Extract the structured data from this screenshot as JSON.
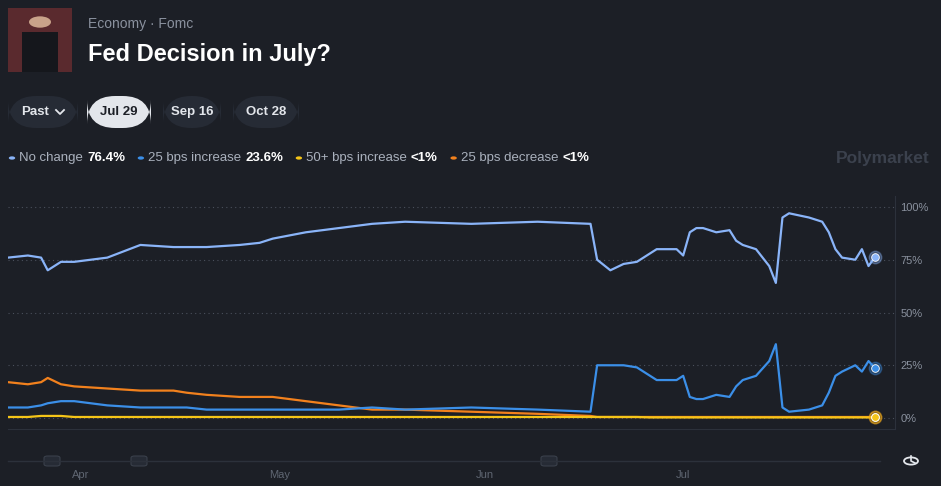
{
  "chart_data": {
    "type": "line",
    "subtitle": "Economy · Fomc",
    "title": "Fed Decision in July?",
    "tabs": [
      "Past",
      "Jul 29",
      "Sep 16",
      "Oct 28"
    ],
    "selected_tab": "Jul 29",
    "watermark": "Polymarket",
    "legend": "top",
    "grid": true,
    "x": [
      0,
      3,
      5,
      6,
      8,
      10,
      15,
      20,
      25,
      27,
      30,
      35,
      38,
      40,
      45,
      50,
      55,
      60,
      70,
      80,
      88,
      89,
      91,
      93,
      95,
      97,
      98,
      101,
      102,
      103,
      104,
      105,
      107,
      109,
      110,
      111,
      113,
      115,
      116,
      117,
      118,
      121,
      123,
      124,
      125,
      126,
      128,
      129,
      130,
      131
    ],
    "xlim": [
      0,
      134
    ],
    "xticks": [
      {
        "value": 11,
        "label": "Apr"
      },
      {
        "value": 41,
        "label": "May"
      },
      {
        "value": 72,
        "label": "Jun"
      },
      {
        "value": 102,
        "label": "Jul"
      }
    ],
    "ylim": [
      -5,
      105
    ],
    "yticks": [
      {
        "value": 0,
        "label": "0%"
      },
      {
        "value": 25,
        "label": "25%"
      },
      {
        "value": 50,
        "label": "50%"
      },
      {
        "value": 75,
        "label": "75%"
      },
      {
        "value": 100,
        "label": "100%"
      }
    ],
    "series": [
      {
        "name": "25 bps decrease",
        "label": "<1%",
        "color": "#f2811d",
        "values": [
          17,
          16,
          17,
          19,
          16,
          15,
          14,
          13,
          13,
          12,
          11,
          10,
          10,
          10,
          8,
          6,
          4,
          4,
          3,
          2,
          1,
          0.5,
          0.5,
          0.5,
          0.5,
          0.5,
          0.5,
          0.5,
          0.5,
          0.5,
          0.5,
          0.5,
          0.5,
          0.5,
          0.5,
          0.5,
          0.5,
          0.5,
          0.5,
          0.5,
          0.5,
          0.5,
          0.5,
          0.5,
          0.5,
          0.5,
          0.5,
          0.5,
          0.5,
          0.3
        ]
      },
      {
        "name": "50+ bps increase",
        "label": "<1%",
        "color": "#f5c518",
        "values": [
          0.5,
          0.5,
          1,
          1,
          1,
          0.5,
          0.5,
          0.5,
          0.5,
          0.5,
          0.5,
          0.5,
          0.5,
          0.5,
          0.5,
          0.5,
          0.5,
          0.5,
          0.5,
          0.5,
          0.5,
          0.5,
          0.5,
          0.5,
          0.5,
          0.3,
          0.3,
          0.3,
          0.3,
          0.3,
          0.3,
          0.3,
          0.3,
          0.3,
          0.3,
          0.3,
          0.3,
          0.3,
          0.3,
          0.3,
          0.3,
          0.3,
          0.3,
          0.3,
          0.3,
          0.3,
          0.3,
          0.3,
          0.3,
          0.3
        ]
      },
      {
        "name": "25 bps increase",
        "label": "23.6%",
        "color": "#3b8fe8",
        "values": [
          5,
          5,
          6,
          7,
          8,
          8,
          6,
          5,
          5,
          5,
          4,
          4,
          4,
          4,
          4,
          4,
          5,
          4,
          5,
          4,
          3,
          25,
          25,
          25,
          24,
          20,
          18,
          18,
          20,
          10,
          9,
          9,
          11,
          10,
          15,
          18,
          20,
          27,
          35,
          5,
          3,
          4,
          6,
          12,
          20,
          22,
          25,
          22,
          27,
          23.6
        ]
      },
      {
        "name": "No change",
        "label": "76.4%",
        "color": "#8ab4f8",
        "values": [
          76,
          77,
          76,
          70,
          74,
          74,
          76,
          82,
          81,
          81,
          81,
          82,
          83,
          85,
          88,
          90,
          92,
          93,
          92,
          93,
          92,
          75,
          70,
          73,
          74,
          78,
          80,
          80,
          77,
          88,
          90,
          90,
          88,
          89,
          84,
          82,
          80,
          72,
          64,
          95,
          97,
          95,
          93,
          88,
          80,
          76,
          75,
          80,
          72,
          76.4
        ]
      }
    ]
  }
}
